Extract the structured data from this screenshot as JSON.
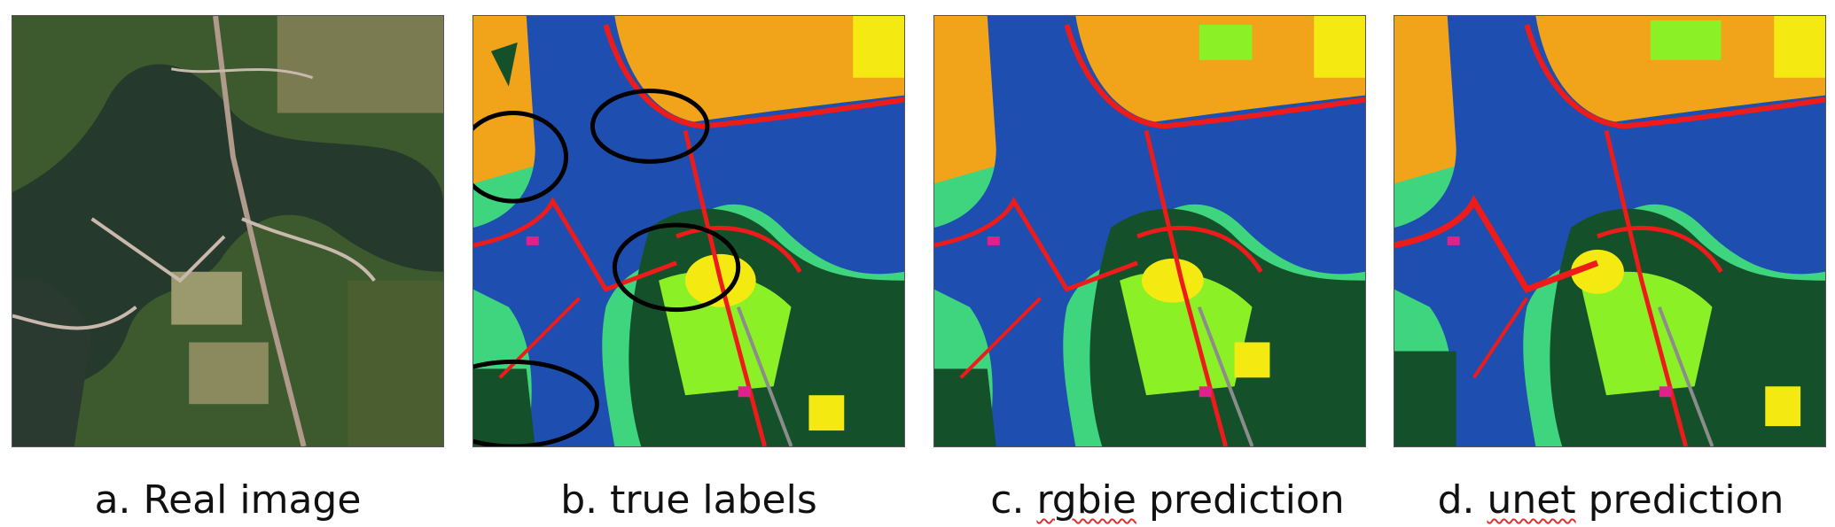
{
  "panels": [
    {
      "id": "a",
      "type": "aerial-photo",
      "caption_prefix": "a. ",
      "caption_main": "Real image",
      "caption_flagged": ""
    },
    {
      "id": "b",
      "type": "label-map",
      "caption_prefix": "b. ",
      "caption_main": "true labels",
      "caption_flagged": ""
    },
    {
      "id": "c",
      "type": "label-map",
      "caption_prefix": "c. ",
      "caption_flagged": "rgbie",
      "caption_main": " prediction"
    },
    {
      "id": "d",
      "type": "label-map",
      "caption_prefix": "d. ",
      "caption_flagged": "unet",
      "caption_main": " prediction"
    }
  ],
  "palette": {
    "water": "#1e4fb0",
    "forest": "#14502a",
    "grassland": "#3fd47e",
    "crop": "#f1a31a",
    "field": "#8cf026",
    "bare": "#f4ea12",
    "road": "#ee1b1b",
    "building": "#e0218a",
    "railway": "#8c8c8c",
    "photo_water": "#26392d",
    "photo_forest": "#2f4a22",
    "photo_field": "#8a8a5e",
    "photo_road": "#b09a8c"
  },
  "annotations": {
    "ellipse_count_panel_b": 4,
    "ellipse_color": "#000000"
  }
}
